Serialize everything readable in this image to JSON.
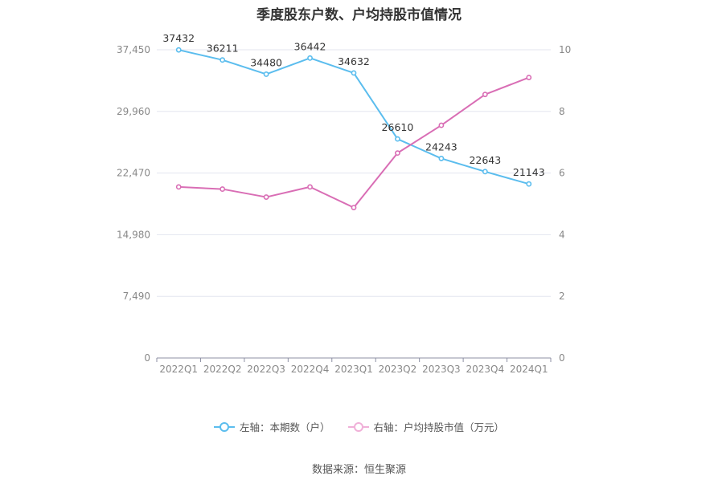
{
  "chart_data": {
    "type": "line",
    "title": "季度股东户数、户均持股市值情况",
    "categories": [
      "2022Q1",
      "2022Q2",
      "2022Q3",
      "2022Q4",
      "2023Q1",
      "2023Q2",
      "2023Q3",
      "2023Q4",
      "2024Q1"
    ],
    "left_axis": {
      "ticks": [
        "0",
        "7,490",
        "14,980",
        "22,470",
        "29,960",
        "37,450"
      ],
      "ylim": [
        0,
        37450
      ]
    },
    "right_axis": {
      "ticks": [
        "0",
        "2",
        "4",
        "6",
        "8",
        "10"
      ],
      "ylim": [
        0,
        10
      ]
    },
    "series": [
      {
        "name": "左轴：本期数（户）",
        "axis": "left",
        "color": "#5bbdee",
        "values": [
          37432,
          36211,
          34480,
          36442,
          34632,
          26610,
          24243,
          22643,
          21143
        ],
        "labels": [
          "37432",
          "36211",
          "34480",
          "36442",
          "34632",
          "26610",
          "24243",
          "22643",
          "21143"
        ]
      },
      {
        "name": "右轴：户均持股市值（万元）",
        "axis": "right",
        "color": "#d96eb5",
        "values": [
          5.55,
          5.48,
          5.22,
          5.55,
          4.88,
          6.65,
          7.55,
          8.55,
          9.1
        ]
      }
    ],
    "grid": true,
    "legend_position": "bottom"
  },
  "source": "数据来源：恒生聚源"
}
